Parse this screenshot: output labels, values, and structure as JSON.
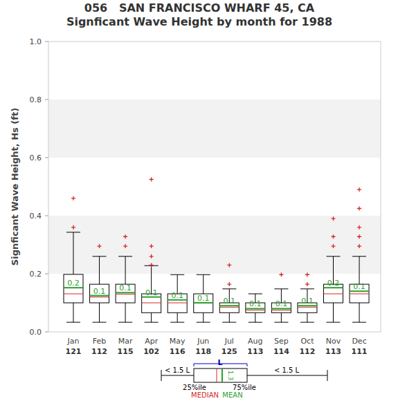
{
  "chart_data": {
    "type": "box",
    "title": "056   SAN FRANCISCO WHARF 45, CA",
    "subtitle": "Signficant Wave Height by month for 1988",
    "y_label": "Signficant Wave Height, Hs (ft)",
    "categories": [
      "Jan",
      "Feb",
      "Mar",
      "Apr",
      "May",
      "Jun",
      "Jul",
      "Aug",
      "Sep",
      "Oct",
      "Nov",
      "Dec"
    ],
    "counts": [
      121,
      112,
      115,
      102,
      116,
      118,
      125,
      113,
      114,
      112,
      113,
      111
    ],
    "min": [
      0.033,
      0.033,
      0.033,
      0.033,
      0.033,
      0.033,
      0.033,
      0.033,
      0.033,
      0.033,
      0.033,
      0.033
    ],
    "q1": [
      0.1,
      0.1,
      0.1,
      0.066,
      0.066,
      0.066,
      0.066,
      0.066,
      0.066,
      0.066,
      0.1,
      0.1
    ],
    "median": [
      0.131,
      0.12,
      0.13,
      0.1,
      0.1,
      0.1,
      0.085,
      0.075,
      0.075,
      0.085,
      0.131,
      0.131
    ],
    "q3": [
      0.198,
      0.164,
      0.164,
      0.131,
      0.131,
      0.131,
      0.1,
      0.1,
      0.1,
      0.1,
      0.164,
      0.164
    ],
    "max": [
      0.343,
      0.26,
      0.26,
      0.228,
      0.197,
      0.197,
      0.148,
      0.131,
      0.148,
      0.148,
      0.26,
      0.26
    ],
    "mean": [
      0.152,
      0.125,
      0.135,
      0.12,
      0.11,
      0.1,
      0.09,
      0.08,
      0.08,
      0.09,
      0.152,
      0.14
    ],
    "value_labels": [
      "0.2",
      "0.1",
      "0.1",
      "0.1",
      "0.1",
      "0.1",
      "0.1",
      "0.1",
      "0.1",
      "0.1",
      "0.2",
      "0.1"
    ],
    "outliers": [
      [
        0.36,
        0.46
      ],
      [
        0.295
      ],
      [
        0.295,
        0.328
      ],
      [
        0.23,
        0.26,
        0.295,
        0.525
      ],
      [],
      [],
      [
        0.164,
        0.23
      ],
      [],
      [
        0.197
      ],
      [
        0.164,
        0.197
      ],
      [
        0.295,
        0.328,
        0.39
      ],
      [
        0.295,
        0.328,
        0.36,
        0.425,
        0.49
      ]
    ],
    "annotations": [
      "< 1.5 L",
      "L",
      "25%ile",
      "75%ile",
      "MEDIAN",
      "MEAN",
      "1.3",
      "< 1.5 L"
    ],
    "ylim": [
      0,
      1
    ],
    "yticks": [
      {
        "value": 0,
        "label": "0.0"
      },
      0.2,
      0.4,
      0.6,
      0.8,
      {
        "value": 1,
        "label": "1.0"
      }
    ]
  }
}
